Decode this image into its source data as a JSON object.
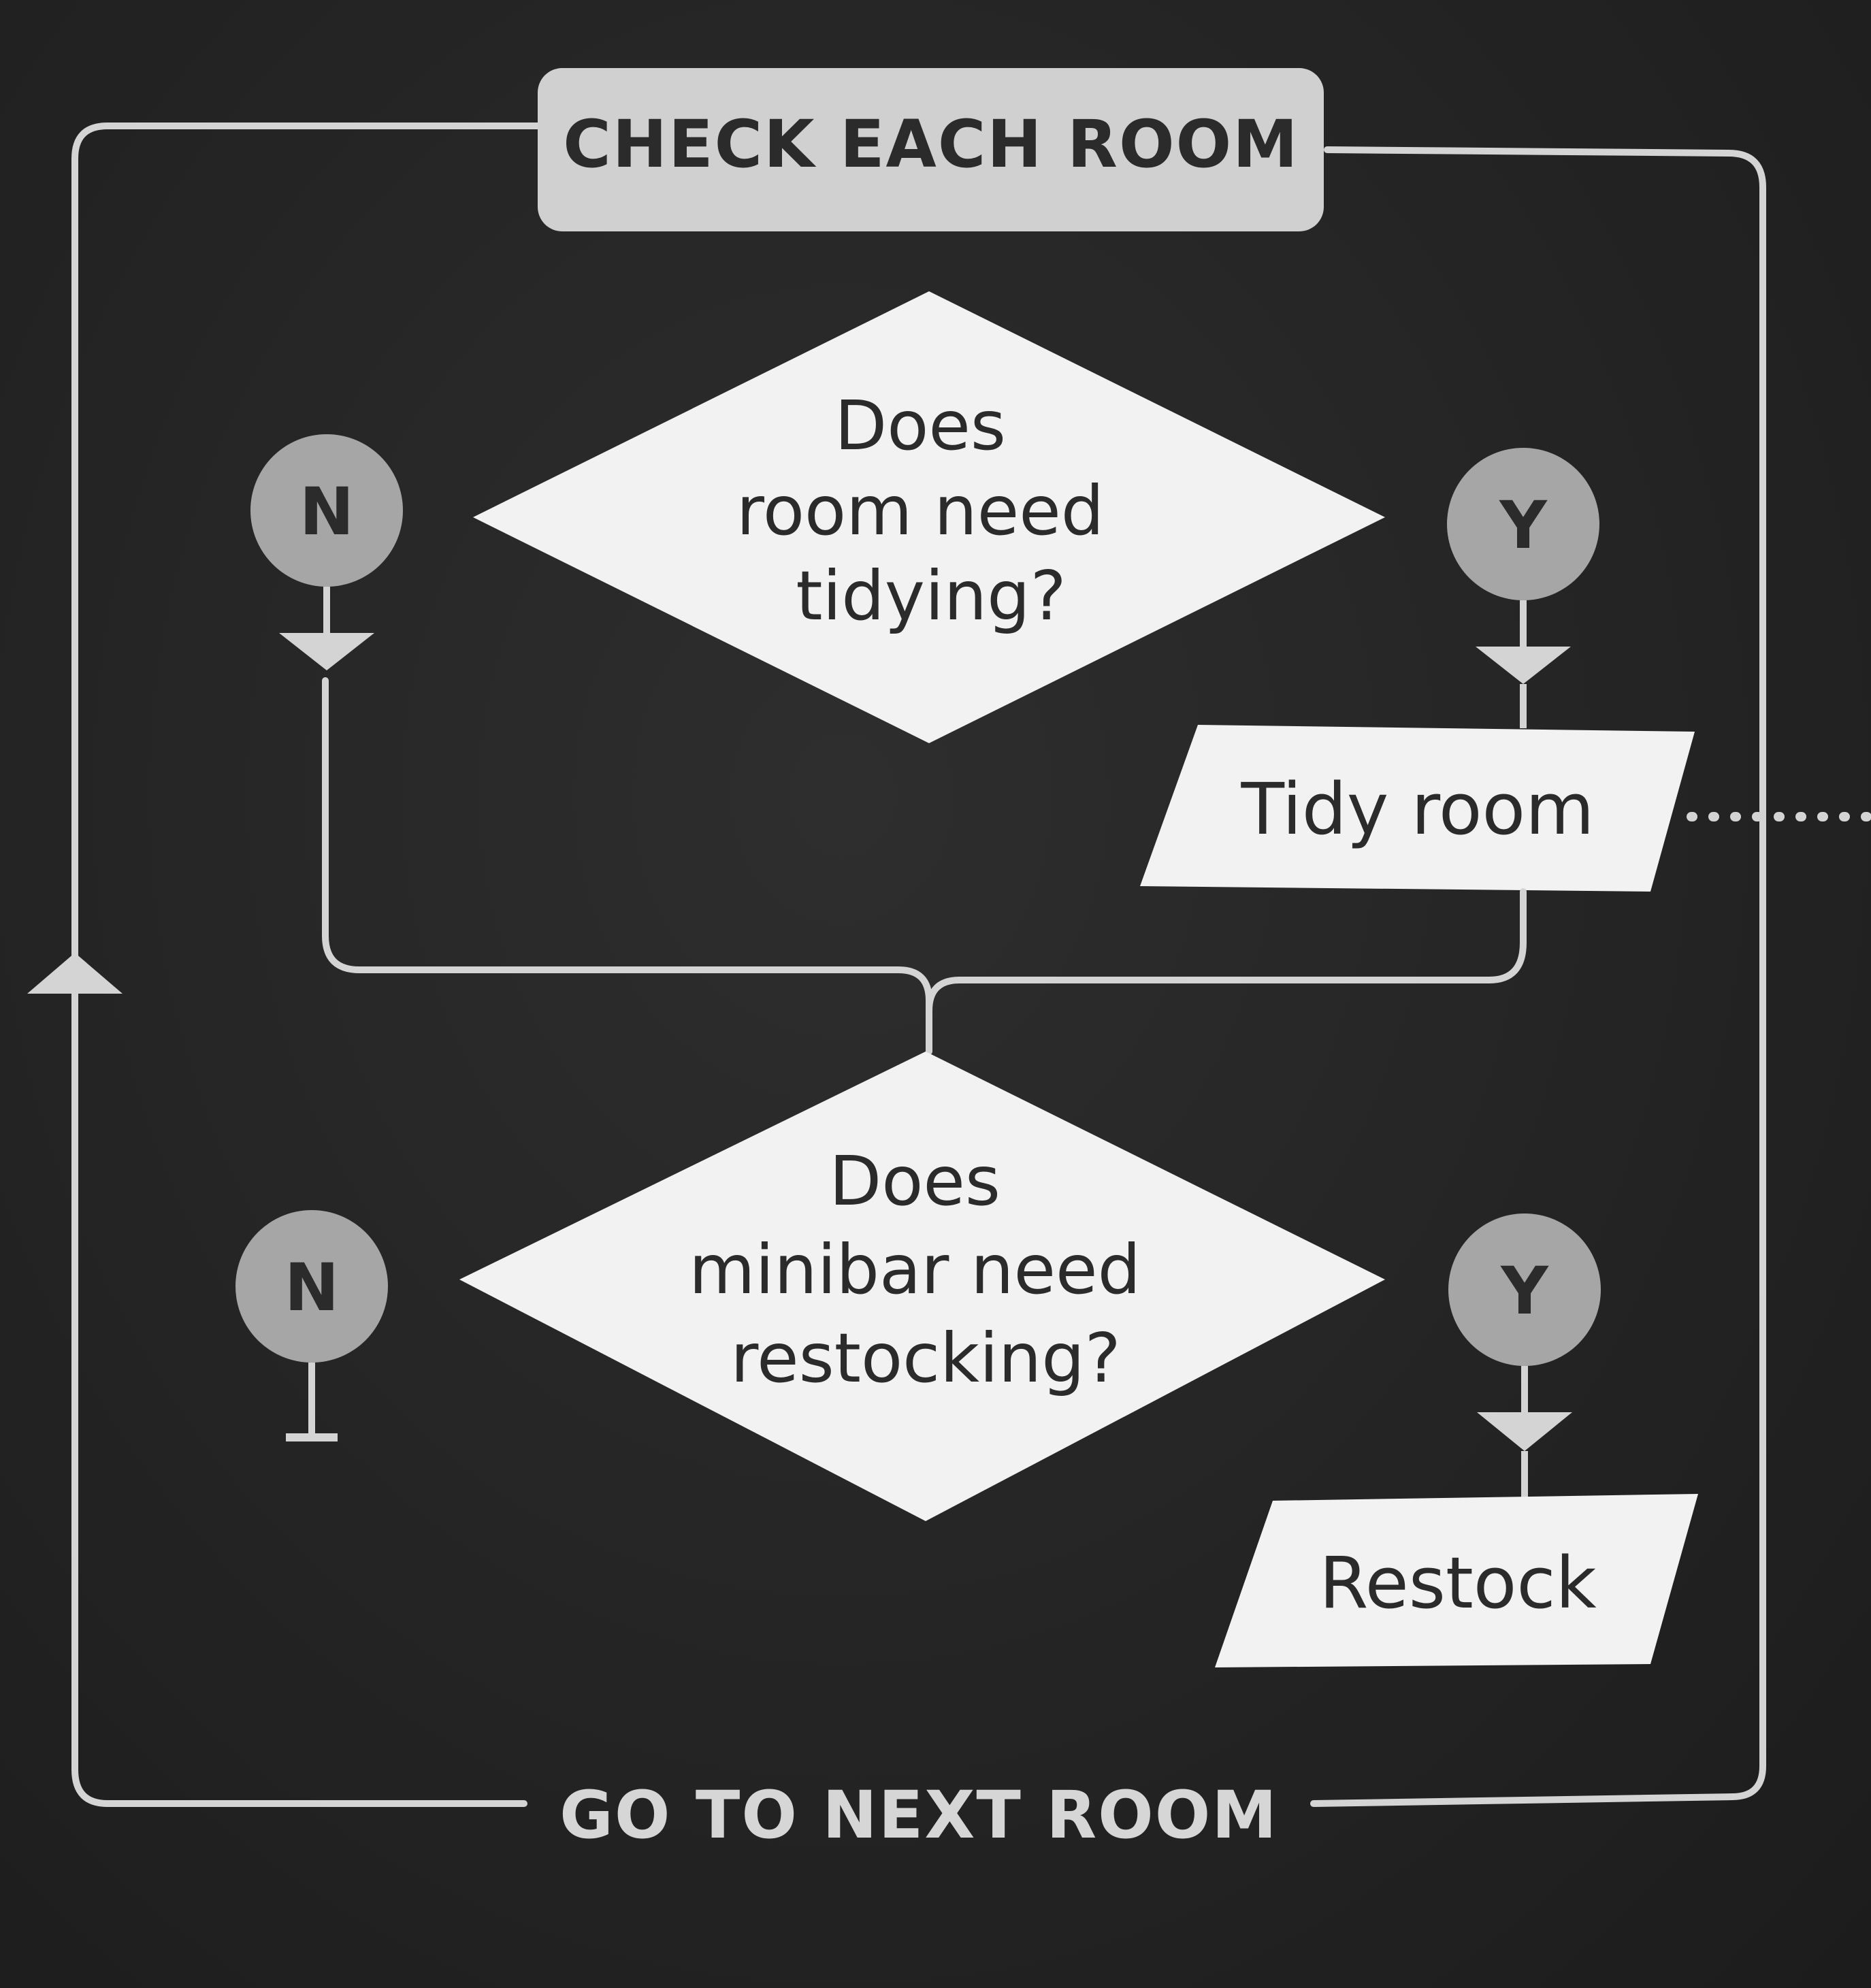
{
  "diagram": {
    "start_label": "CHECK EACH ROOM",
    "end_label": "GO TO NEXT ROOM",
    "decisions": [
      {
        "lines": [
          "Does",
          "room need",
          "tidying?"
        ]
      },
      {
        "lines": [
          "Does",
          "minibar need",
          "restocking?"
        ]
      }
    ],
    "actions": [
      "Tidy room",
      "Restock"
    ],
    "branch_labels": {
      "no": "N",
      "yes": "Y"
    }
  },
  "colors": {
    "background": "#262626",
    "shape_fill": "#f2f2f2",
    "label_fill": "#d0d0d0",
    "circle_fill": "#a6a6a6",
    "line": "#d4d4d4",
    "dark_text": "#2b2b2b",
    "light_text": "#d6d6d6"
  }
}
